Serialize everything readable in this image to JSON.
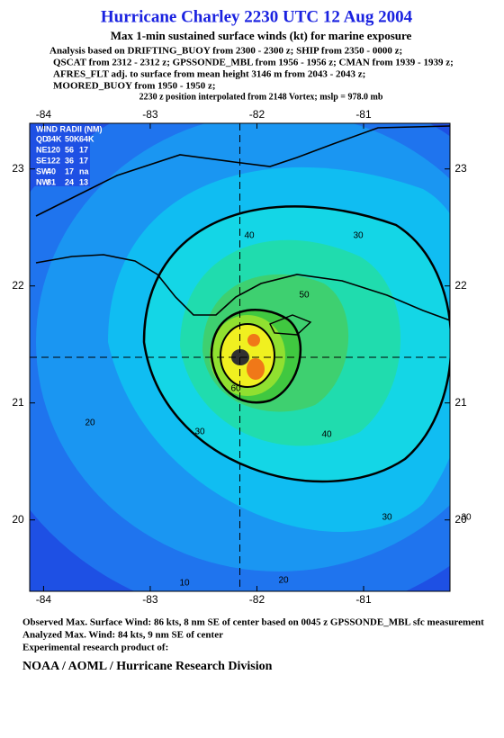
{
  "header": {
    "title": "Hurricane Charley 2230 UTC 12 Aug 2004",
    "subtitle": "Max 1-min sustained surface winds (kt) for marine exposure",
    "analysis_lines": [
      "Analysis based on  DRIFTING_BUOY from 2300 - 2300 z;  SHIP from 2350 - 0000 z;",
      "QSCAT from 2312 - 2312 z;  GPSSONDE_MBL from 1956 - 1956 z;  CMAN from 1939 - 1939 z;",
      "AFRES_FLT adj. to surface from mean height 3146 m from 2043 - 2043 z;",
      "MOORED_BUOY from 1950 - 1950 z;"
    ],
    "position_note": "2230 z position interpolated from 2148 Vortex; mslp = 978.0 mb"
  },
  "map": {
    "xlim": [
      -84.13,
      -80.19
    ],
    "ylim": [
      19.39,
      23.39
    ],
    "xticks": [
      -84,
      -83,
      -82,
      -81
    ],
    "yticks": [
      20,
      21,
      22,
      23
    ],
    "center": [
      -82.16,
      21.39
    ],
    "contour_labels": [
      20,
      30,
      30,
      30,
      30,
      40,
      40,
      50,
      60,
      10,
      20
    ]
  },
  "wind_radii": {
    "title": "WIND RADII (NM)",
    "header": [
      "QD",
      "34K",
      "50K",
      "64K"
    ],
    "rows": [
      [
        "NE",
        120,
        56,
        17
      ],
      [
        "SE",
        122,
        36,
        17
      ],
      [
        "SW",
        40,
        17,
        "na"
      ],
      [
        "NW",
        81,
        24,
        13
      ]
    ]
  },
  "footer": {
    "observed": "Observed Max. Surface Wind: 86 kts, 8 nm SE of center based on 0045 z GPSSONDE_MBL sfc measurement",
    "analyzed": "Analyzed Max. Wind: 84 kts, 9 nm SE of center",
    "note": "Experimental research product of:",
    "org": "NOAA / AOML / Hurricane Research Division"
  }
}
